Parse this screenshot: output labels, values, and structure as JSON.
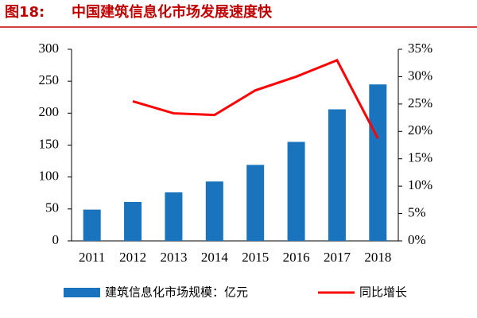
{
  "chart_data": {
    "type": "bar-line",
    "figure_label": "图18:",
    "title": "中国建筑信息化市场发展速度快",
    "categories": [
      "2011",
      "2012",
      "2013",
      "2014",
      "2015",
      "2016",
      "2017",
      "2018"
    ],
    "series": [
      {
        "name": "建筑信息化市场规模：亿元",
        "type": "bar",
        "color": "#1a74bd",
        "values": [
          49,
          61,
          76,
          93,
          119,
          155,
          206,
          245
        ]
      },
      {
        "name": "同比增长",
        "type": "line",
        "axis": "y2",
        "color": "#ff0000",
        "values": [
          null,
          25.5,
          23.3,
          23.0,
          27.5,
          30.0,
          33.0,
          18.7
        ]
      }
    ],
    "ylim": [
      0,
      300
    ],
    "yticks": [
      0,
      50,
      100,
      150,
      200,
      250,
      300
    ],
    "y2lim": [
      0,
      35
    ],
    "y2ticks": [
      {
        "value": 0,
        "label": "0%"
      },
      {
        "value": 5,
        "label": "5%"
      },
      {
        "value": 10,
        "label": "10%"
      },
      {
        "value": 15,
        "label": "15%"
      },
      {
        "value": 20,
        "label": "20%"
      },
      {
        "value": 25,
        "label": "25%"
      },
      {
        "value": 30,
        "label": "30%"
      },
      {
        "value": 35,
        "label": "35%"
      }
    ]
  }
}
